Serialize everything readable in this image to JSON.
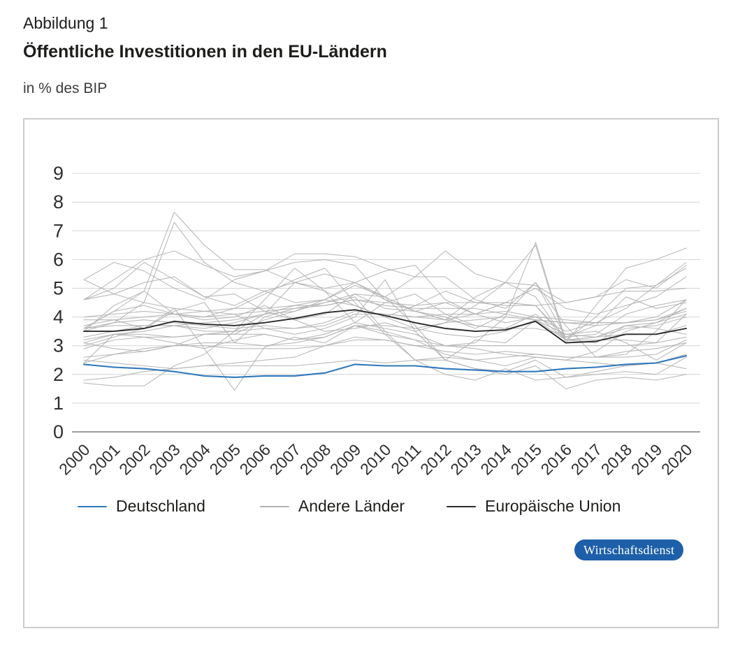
{
  "header": {
    "figure_label": "Abbildung 1",
    "title": "Öffentliche Investitionen in den EU-Ländern",
    "subtitle": "in % des BIP"
  },
  "legend": {
    "items": [
      {
        "label": "Deutschland",
        "color": "#3178bc",
        "thickness": 2
      },
      {
        "label": "Andere Länder",
        "color": "#b2b2b2",
        "thickness": 2
      },
      {
        "label": "Europäische Union",
        "color": "#2b2b2b",
        "thickness": 2
      }
    ]
  },
  "branding": {
    "badge_label": "Wirtschaftsdienst",
    "badge_color": "#1d5fa8",
    "badge_text_color": "#ffffff"
  },
  "chart_data": {
    "type": "line",
    "title": "Öffentliche Investitionen in den EU-Ländern",
    "ylabel": "in % des BIP",
    "ylim": [
      0,
      9
    ],
    "yticks": [
      0,
      1,
      2,
      3,
      4,
      5,
      6,
      7,
      8,
      9
    ],
    "grid": "horizontal",
    "legend_position": "bottom",
    "axis": {
      "grid_color": "#d4d4d4",
      "zero_line_color": "#9e9e9e",
      "tick_color": "#2f2f2f"
    },
    "x": [
      "2000",
      "2001",
      "2002",
      "2003",
      "2004",
      "2005",
      "2006",
      "2007",
      "2008",
      "2009",
      "2010",
      "2011",
      "2012",
      "2013",
      "2014",
      "2015",
      "2016",
      "2017",
      "2018",
      "2019",
      "2020"
    ],
    "series": [
      {
        "name": "Deutschland",
        "color": "#3178bc",
        "values": [
          2.35,
          2.25,
          2.2,
          2.1,
          1.95,
          1.9,
          1.95,
          1.95,
          2.05,
          2.35,
          2.3,
          2.3,
          2.2,
          2.15,
          2.1,
          2.1,
          2.2,
          2.25,
          2.35,
          2.4,
          2.65
        ]
      },
      {
        "name": "Europäische Union",
        "color": "#2b2b2b",
        "values": [
          3.5,
          3.5,
          3.6,
          3.85,
          3.75,
          3.7,
          3.8,
          3.95,
          4.15,
          4.25,
          4.05,
          3.8,
          3.6,
          3.5,
          3.55,
          3.85,
          3.1,
          3.15,
          3.4,
          3.4,
          3.6
        ]
      },
      {
        "name": "Andere Länder",
        "color": "#b2b2b2",
        "values_set": [
          [
            3.6,
            4.2,
            4.9,
            7.65,
            6.5,
            5.65,
            5.65,
            5.2,
            5.0,
            5.2,
            4.6,
            4.2,
            4.0,
            3.6,
            4.1,
            5.2,
            3.3,
            3.4,
            4.1,
            4.4,
            4.6
          ],
          [
            3.5,
            3.8,
            4.5,
            7.3,
            5.9,
            5.2,
            4.9,
            4.5,
            4.6,
            4.4,
            4.0,
            3.6,
            3.4,
            3.3,
            3.5,
            3.9,
            3.2,
            3.3,
            3.6,
            3.7,
            4.0
          ],
          [
            2.9,
            3.2,
            3.3,
            3.1,
            2.9,
            3.2,
            3.4,
            3.2,
            3.4,
            3.8,
            3.6,
            3.4,
            3.0,
            3.1,
            4.0,
            6.6,
            3.2,
            3.3,
            3.7,
            3.6,
            3.4
          ],
          [
            3.5,
            4.4,
            4.9,
            4.1,
            3.9,
            4.0,
            4.4,
            3.9,
            3.5,
            3.6,
            3.8,
            3.5,
            3.8,
            4.4,
            5.2,
            6.5,
            3.1,
            4.4,
            5.7,
            6.0,
            6.4
          ],
          [
            5.3,
            4.8,
            5.2,
            5.4,
            4.7,
            4.4,
            4.9,
            5.2,
            5.5,
            5.2,
            4.7,
            5.4,
            6.3,
            5.5,
            5.2,
            5.1,
            4.5,
            4.7,
            5.3,
            5.0,
            5.8
          ],
          [
            3.6,
            4.2,
            4.4,
            4.1,
            4.0,
            4.3,
            4.8,
            5.3,
            5.7,
            4.5,
            3.4,
            2.5,
            2.0,
            1.8,
            2.2,
            1.8,
            1.9,
            2.1,
            2.3,
            2.4,
            2.2
          ],
          [
            3.3,
            3.5,
            3.7,
            3.7,
            3.6,
            3.8,
            4.1,
            4.4,
            4.6,
            5.1,
            4.7,
            3.7,
            2.5,
            2.2,
            2.1,
            2.5,
            1.9,
            2.0,
            2.1,
            2.0,
            2.6
          ],
          [
            3.7,
            3.9,
            3.6,
            4.2,
            4.5,
            3.1,
            4.0,
            4.3,
            4.5,
            4.7,
            3.5,
            2.5,
            2.5,
            3.2,
            3.1,
            3.9,
            3.4,
            3.5,
            3.1,
            2.5,
            3.1
          ],
          [
            4.6,
            4.8,
            4.5,
            4.3,
            4.2,
            4.1,
            3.6,
            3.4,
            3.6,
            4.0,
            5.3,
            3.5,
            2.5,
            2.2,
            2.0,
            2.3,
            1.5,
            1.8,
            1.9,
            1.8,
            2.0
          ],
          [
            2.4,
            3.4,
            3.4,
            3.3,
            3.4,
            3.4,
            3.9,
            4.2,
            4.6,
            5.2,
            5.6,
            5.8,
            4.6,
            4.1,
            4.5,
            4.4,
            3.3,
            3.7,
            4.7,
            4.3,
            4.5
          ],
          [
            5.3,
            5.9,
            5.6,
            5.0,
            4.6,
            5.3,
            5.6,
            6.2,
            6.2,
            6.1,
            5.7,
            5.4,
            5.4,
            4.6,
            4.3,
            5.2,
            3.7,
            2.6,
            2.7,
            3.5,
            4.6
          ],
          [
            1.7,
            1.6,
            1.6,
            2.3,
            2.7,
            3.5,
            4.6,
            5.7,
            4.9,
            4.4,
            4.0,
            4.4,
            4.9,
            4.5,
            4.4,
            4.4,
            3.2,
            4.0,
            5.0,
            5.1,
            5.7
          ],
          [
            2.4,
            2.7,
            2.9,
            3.0,
            3.4,
            3.5,
            4.1,
            5.2,
            4.9,
            3.8,
            4.5,
            4.8,
            4.1,
            3.7,
            3.6,
            4.1,
            3.2,
            3.2,
            3.2,
            3.1,
            4.1
          ],
          [
            2.6,
            2.7,
            2.8,
            3.0,
            3.1,
            3.1,
            3.0,
            3.1,
            3.3,
            3.7,
            3.7,
            3.6,
            3.8,
            3.9,
            4.0,
            3.9,
            3.8,
            3.7,
            3.8,
            4.0,
            4.6
          ],
          [
            3.6,
            3.7,
            3.7,
            3.7,
            3.5,
            3.5,
            3.6,
            3.6,
            3.8,
            4.2,
            4.1,
            4.0,
            3.9,
            3.7,
            3.6,
            3.6,
            3.4,
            3.3,
            3.4,
            3.4,
            3.7
          ],
          [
            3.9,
            3.9,
            4.0,
            4.1,
            4.2,
            4.3,
            4.3,
            4.4,
            4.4,
            4.6,
            4.4,
            4.3,
            4.3,
            4.3,
            4.1,
            3.9,
            3.8,
            3.8,
            3.8,
            3.9,
            4.2
          ],
          [
            3.1,
            3.4,
            3.3,
            3.3,
            3.4,
            3.4,
            3.4,
            3.2,
            3.3,
            3.7,
            3.4,
            3.2,
            3.0,
            2.9,
            2.7,
            2.6,
            2.5,
            2.4,
            2.3,
            2.4,
            2.7
          ],
          [
            2.5,
            2.4,
            2.3,
            2.2,
            2.3,
            2.3,
            2.3,
            2.3,
            2.4,
            2.5,
            2.4,
            2.5,
            2.6,
            2.5,
            2.6,
            2.7,
            2.6,
            2.6,
            2.8,
            2.9,
            3.1
          ],
          [
            1.8,
            1.9,
            2.1,
            2.2,
            2.3,
            2.4,
            2.5,
            2.6,
            3.0,
            3.3,
            3.2,
            3.0,
            2.8,
            2.7,
            2.8,
            2.7,
            2.6,
            2.6,
            2.6,
            2.7,
            3.2
          ],
          [
            3.1,
            2.9,
            2.8,
            3.0,
            3.0,
            2.9,
            2.9,
            2.9,
            3.0,
            3.2,
            3.2,
            3.0,
            3.0,
            3.0,
            3.0,
            3.0,
            3.0,
            3.0,
            3.0,
            3.1,
            3.3
          ],
          [
            4.0,
            4.1,
            4.2,
            4.1,
            4.0,
            4.1,
            4.2,
            4.3,
            4.4,
            4.6,
            4.5,
            4.4,
            4.5,
            4.5,
            4.5,
            4.4,
            4.5,
            4.7,
            4.9,
            4.9,
            5.0
          ],
          [
            3.6,
            3.8,
            3.9,
            3.8,
            3.7,
            3.6,
            3.7,
            3.6,
            3.7,
            4.1,
            4.1,
            4.0,
            4.1,
            4.1,
            4.2,
            4.0,
            3.9,
            3.8,
            3.8,
            3.9,
            4.3
          ],
          [
            4.6,
            5.3,
            6.0,
            6.3,
            5.8,
            5.4,
            5.6,
            5.9,
            6.0,
            5.8,
            4.6,
            4.2,
            3.9,
            4.1,
            3.8,
            4.0,
            3.5,
            3.8,
            4.3,
            5.1,
            5.9
          ],
          [
            4.6,
            5.0,
            5.9,
            5.3,
            4.7,
            4.8,
            4.2,
            3.9,
            4.1,
            4.8,
            4.3,
            4.2,
            4.5,
            4.1,
            4.5,
            5.0,
            4.3,
            4.1,
            4.4,
            4.7,
            5.4
          ],
          [
            3.0,
            3.3,
            3.6,
            4.3,
            2.9,
            1.45,
            2.95,
            3.3,
            3.1,
            3.7,
            3.5,
            3.2,
            2.7,
            2.5,
            2.3,
            2.6,
            2.5,
            2.8,
            3.5,
            3.8,
            4.3
          ],
          [
            3.2,
            3.4,
            3.5,
            3.7,
            3.8,
            3.9,
            4.1,
            4.2,
            4.5,
            4.8,
            4.7,
            4.2,
            3.9,
            4.7,
            5.2,
            4.7,
            3.2,
            3.1,
            3.7,
            3.8,
            4.1
          ]
        ]
      }
    ]
  }
}
